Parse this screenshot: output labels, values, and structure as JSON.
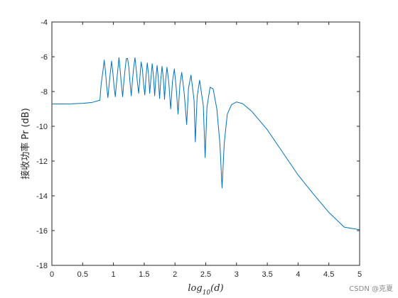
{
  "chart_data": {
    "type": "line",
    "title": "",
    "xlabel": {
      "base": "log",
      "subscript": "10",
      "arg": "(d)"
    },
    "ylabel": "接收功率 Pr (dB)",
    "xlim": [
      0,
      5
    ],
    "ylim": [
      -18,
      -4
    ],
    "xticks": [
      0,
      0.5,
      1,
      1.5,
      2,
      2.5,
      3,
      3.5,
      4,
      4.5,
      5
    ],
    "yticks": [
      -18,
      -16,
      -14,
      -12,
      -10,
      -8,
      -6,
      -4
    ],
    "xtick_labels": [
      "0",
      "0.5",
      "1",
      "1.5",
      "2",
      "2.5",
      "3",
      "3.5",
      "4",
      "4.5",
      "5"
    ],
    "ytick_labels": [
      "-18",
      "-16",
      "-14",
      "-12",
      "-10",
      "-8",
      "-6",
      "-4"
    ],
    "grid": false,
    "line_color": "#0072BD",
    "series": [
      {
        "points": [
          [
            0,
            -8.72
          ],
          [
            0.3,
            -8.71
          ],
          [
            0.5,
            -8.68
          ],
          [
            0.65,
            -8.63
          ],
          [
            0.78,
            -8.5
          ],
          [
            0.8,
            -7.6
          ],
          [
            0.83,
            -6.8
          ],
          [
            0.85,
            -6.2
          ],
          [
            0.87,
            -6.8
          ],
          [
            0.89,
            -7.7
          ],
          [
            0.91,
            -8.35
          ],
          [
            0.93,
            -7.6
          ],
          [
            0.95,
            -6.9
          ],
          [
            0.97,
            -6.25
          ],
          [
            0.99,
            -6.9
          ],
          [
            1.01,
            -7.7
          ],
          [
            1.03,
            -8.3
          ],
          [
            1.05,
            -7.5
          ],
          [
            1.07,
            -6.8
          ],
          [
            1.09,
            -6.05
          ],
          [
            1.11,
            -6.8
          ],
          [
            1.13,
            -7.6
          ],
          [
            1.15,
            -8.3
          ],
          [
            1.17,
            -7.4
          ],
          [
            1.19,
            -6.7
          ],
          [
            1.21,
            -6.1
          ],
          [
            1.23,
            -6.1
          ],
          [
            1.25,
            -6.6
          ],
          [
            1.27,
            -7.5
          ],
          [
            1.29,
            -8.25
          ],
          [
            1.31,
            -7.3
          ],
          [
            1.33,
            -6.6
          ],
          [
            1.35,
            -6.05
          ],
          [
            1.37,
            -6.7
          ],
          [
            1.39,
            -7.5
          ],
          [
            1.41,
            -8.1
          ],
          [
            1.43,
            -7.2
          ],
          [
            1.45,
            -6.3
          ],
          [
            1.47,
            -6.7
          ],
          [
            1.49,
            -7.6
          ],
          [
            1.51,
            -8.2
          ],
          [
            1.53,
            -7.1
          ],
          [
            1.55,
            -6.35
          ],
          [
            1.57,
            -7.0
          ],
          [
            1.59,
            -8.1
          ],
          [
            1.61,
            -7.2
          ],
          [
            1.63,
            -6.4
          ],
          [
            1.65,
            -7.1
          ],
          [
            1.67,
            -8.25
          ],
          [
            1.69,
            -7.2
          ],
          [
            1.71,
            -6.5
          ],
          [
            1.73,
            -7.3
          ],
          [
            1.75,
            -8.4
          ],
          [
            1.77,
            -7.3
          ],
          [
            1.79,
            -6.55
          ],
          [
            1.81,
            -7.2
          ],
          [
            1.83,
            -8.45
          ],
          [
            1.85,
            -7.3
          ],
          [
            1.87,
            -6.6
          ],
          [
            1.9,
            -7.5
          ],
          [
            1.93,
            -9.0
          ],
          [
            1.96,
            -7.4
          ],
          [
            1.99,
            -6.7
          ],
          [
            2.02,
            -7.8
          ],
          [
            2.05,
            -9.3
          ],
          [
            2.08,
            -7.6
          ],
          [
            2.11,
            -6.9
          ],
          [
            2.15,
            -8.1
          ],
          [
            2.19,
            -9.9
          ],
          [
            2.22,
            -7.8
          ],
          [
            2.26,
            -7.05
          ],
          [
            2.31,
            -8.5
          ],
          [
            2.33,
            -10.9
          ],
          [
            2.36,
            -8.3
          ],
          [
            2.4,
            -7.35
          ],
          [
            2.46,
            -8.8
          ],
          [
            2.49,
            -11.8
          ],
          [
            2.52,
            -8.9
          ],
          [
            2.57,
            -7.75
          ],
          [
            2.62,
            -7.85
          ],
          [
            2.68,
            -9.0
          ],
          [
            2.73,
            -11.0
          ],
          [
            2.765,
            -13.55
          ],
          [
            2.8,
            -11.0
          ],
          [
            2.85,
            -9.3
          ],
          [
            2.92,
            -8.75
          ],
          [
            3.0,
            -8.6
          ],
          [
            3.1,
            -8.7
          ],
          [
            3.25,
            -9.15
          ],
          [
            3.5,
            -10.2
          ],
          [
            3.75,
            -11.5
          ],
          [
            4.0,
            -12.8
          ],
          [
            4.25,
            -13.9
          ],
          [
            4.5,
            -14.95
          ],
          [
            4.75,
            -15.8
          ],
          [
            5.0,
            -15.95
          ]
        ]
      }
    ]
  },
  "watermark": "CSDN @克夏"
}
